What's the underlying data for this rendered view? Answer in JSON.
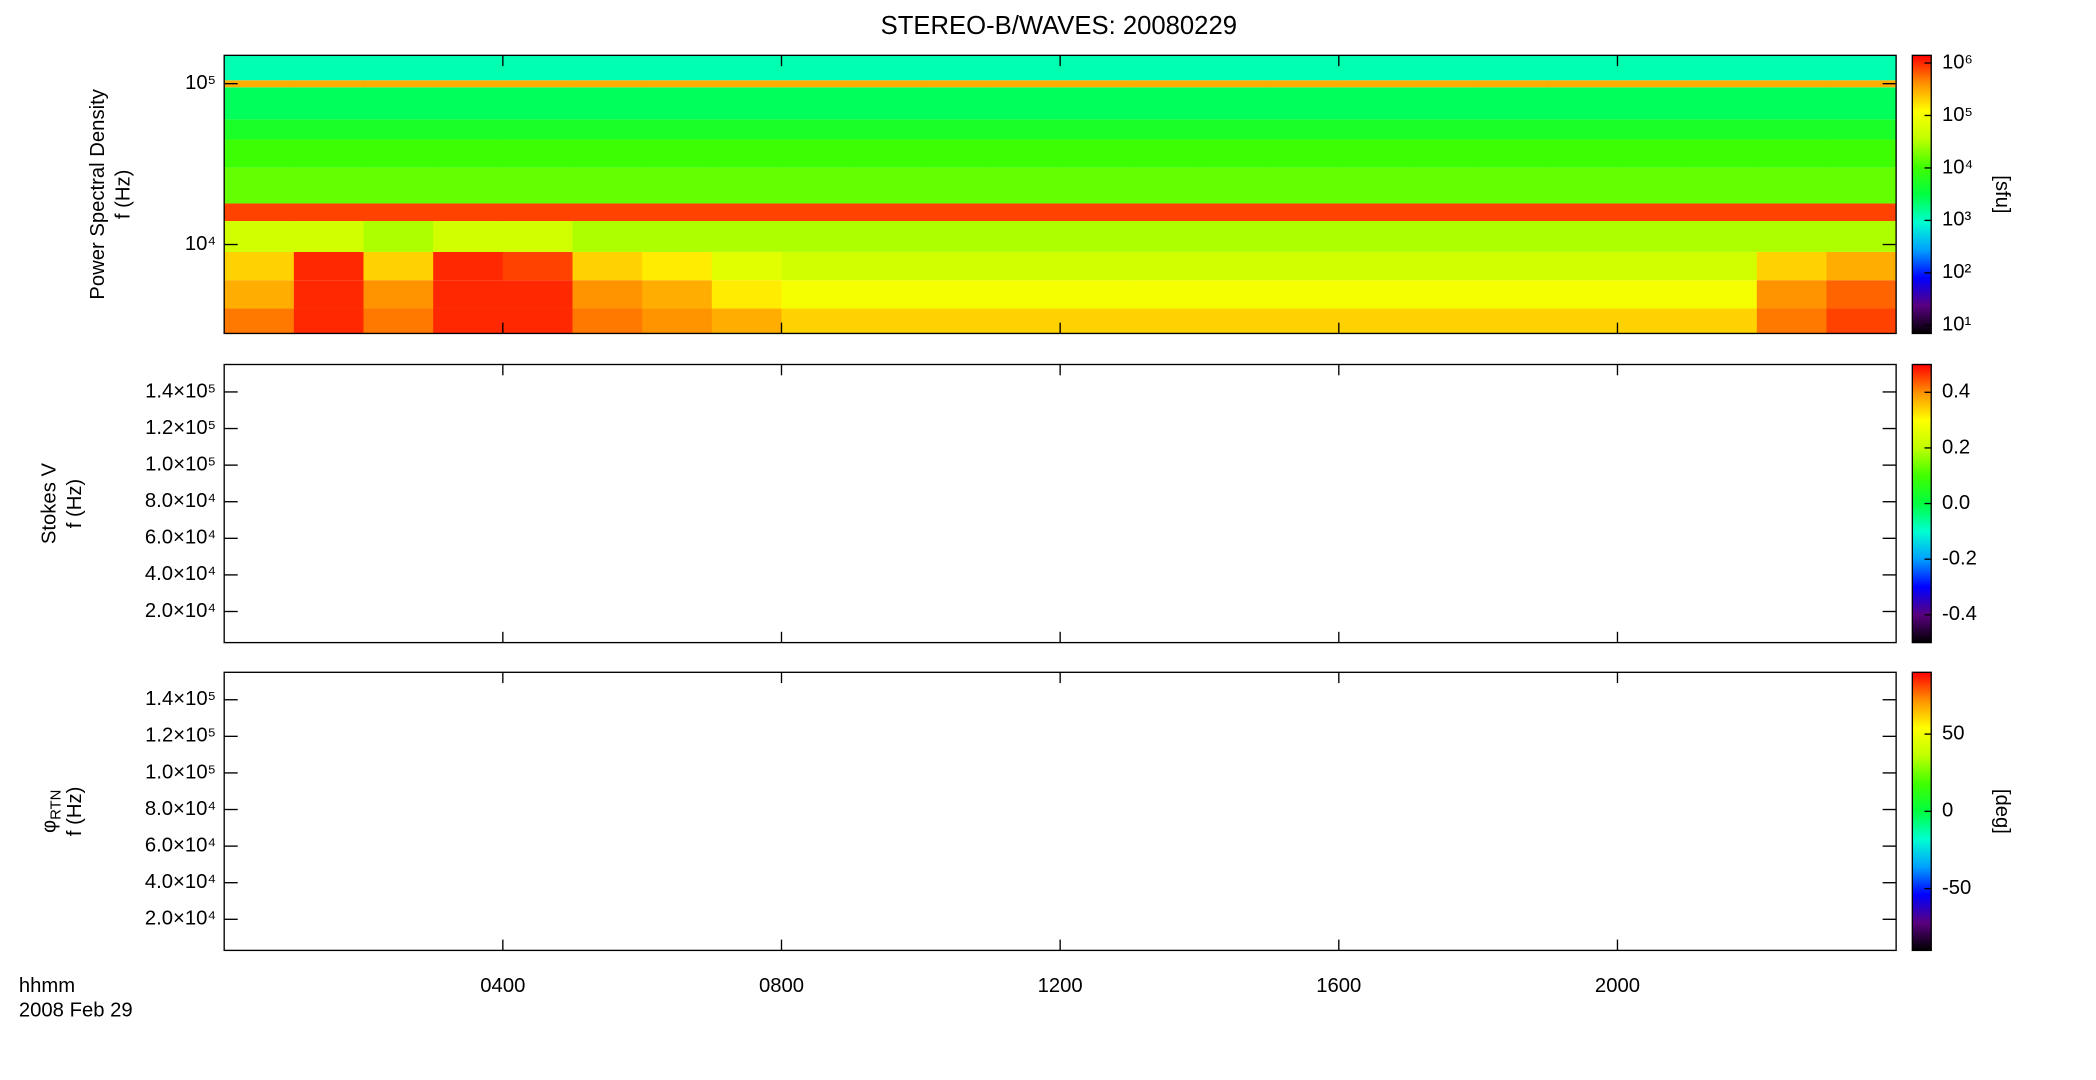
{
  "chart_data": [
    {
      "type": "heatmap",
      "title": "STEREO-B/WAVES: 20080229",
      "ylabel": [
        "Power Spectral Density",
        "f (Hz)"
      ],
      "xlim": [
        0,
        24
      ],
      "xticks": [
        4,
        8,
        12,
        16,
        20
      ],
      "ylog": true,
      "ylim": [
        2800,
        150000
      ],
      "yticks": [
        {
          "value": 10000,
          "label": "10⁴"
        },
        {
          "value": 100000,
          "label": "10⁵"
        }
      ],
      "xbins": [
        0,
        1,
        2,
        3,
        4,
        5,
        6,
        7,
        8,
        9,
        10,
        11,
        12,
        13,
        14,
        15,
        16,
        17,
        18,
        19,
        20,
        21,
        22,
        23,
        24
      ],
      "ybins": [
        2800,
        4000,
        6000,
        9000,
        14000,
        18000,
        30000,
        45000,
        60000,
        95000,
        105000,
        150000
      ],
      "z": [
        [
          500000,
          1000000,
          500000,
          1000000,
          1000000,
          500000,
          400000,
          300000,
          200000,
          200000,
          200000,
          200000,
          200000,
          200000,
          200000,
          200000,
          200000,
          200000,
          200000,
          200000,
          200000,
          200000,
          500000,
          800000
        ],
        [
          300000,
          1000000,
          400000,
          1000000,
          1000000,
          400000,
          300000,
          150000,
          100000,
          100000,
          100000,
          100000,
          100000,
          100000,
          100000,
          100000,
          100000,
          100000,
          100000,
          100000,
          100000,
          100000,
          400000,
          600000
        ],
        [
          200000,
          1000000,
          200000,
          1000000,
          800000,
          200000,
          150000,
          70000,
          50000,
          50000,
          50000,
          50000,
          50000,
          50000,
          50000,
          50000,
          50000,
          50000,
          50000,
          50000,
          50000,
          50000,
          200000,
          300000
        ],
        [
          50000,
          50000,
          30000,
          50000,
          50000,
          30000,
          30000,
          30000,
          30000,
          30000,
          30000,
          30000,
          30000,
          30000,
          30000,
          30000,
          30000,
          30000,
          30000,
          30000,
          30000,
          30000,
          30000,
          30000
        ],
        [
          800000,
          800000,
          800000,
          800000,
          800000,
          800000,
          800000,
          800000,
          800000,
          800000,
          800000,
          800000,
          800000,
          800000,
          800000,
          800000,
          800000,
          800000,
          800000,
          800000,
          800000,
          800000,
          800000,
          800000
        ],
        [
          15000,
          15000,
          15000,
          15000,
          15000,
          15000,
          15000,
          15000,
          15000,
          15000,
          15000,
          15000,
          15000,
          15000,
          15000,
          15000,
          15000,
          15000,
          15000,
          15000,
          15000,
          15000,
          15000,
          15000
        ],
        [
          10000,
          10000,
          10000,
          10000,
          10000,
          10000,
          10000,
          10000,
          10000,
          10000,
          10000,
          10000,
          10000,
          10000,
          10000,
          10000,
          10000,
          10000,
          10000,
          10000,
          10000,
          10000,
          10000,
          10000
        ],
        [
          5000,
          5000,
          5000,
          5000,
          5000,
          5000,
          5000,
          5000,
          5000,
          5000,
          5000,
          5000,
          5000,
          5000,
          5000,
          5000,
          5000,
          5000,
          5000,
          5000,
          5000,
          5000,
          5000,
          5000
        ],
        [
          2500,
          2500,
          2500,
          2500,
          2500,
          2500,
          2500,
          2500,
          2500,
          2500,
          2500,
          2500,
          2500,
          2500,
          2500,
          2500,
          2500,
          2500,
          2500,
          2500,
          2500,
          2500,
          2500,
          2500
        ],
        [
          300000,
          300000,
          300000,
          300000,
          300000,
          300000,
          300000,
          300000,
          300000,
          300000,
          300000,
          300000,
          300000,
          300000,
          300000,
          300000,
          300000,
          300000,
          300000,
          300000,
          300000,
          300000,
          300000,
          300000
        ],
        [
          1200,
          1200,
          1200,
          1200,
          1200,
          1200,
          1200,
          1200,
          1200,
          1200,
          1200,
          1200,
          1200,
          1200,
          1200,
          1200,
          1200,
          1200,
          1200,
          1200,
          1200,
          1200,
          1200,
          1200
        ]
      ],
      "zlog": true,
      "zlim": [
        7,
        1400000
      ],
      "zticks": [
        {
          "value": 10,
          "label": "10¹"
        },
        {
          "value": 100,
          "label": "10²"
        },
        {
          "value": 1000,
          "label": "10³"
        },
        {
          "value": 10000,
          "label": "10⁴"
        },
        {
          "value": 100000,
          "label": "10⁵"
        },
        {
          "value": 1000000,
          "label": "10⁶"
        }
      ],
      "zlabel": "[sfu]",
      "colormap": [
        "#000000",
        "#5a0080",
        "#0000ff",
        "#00a0ff",
        "#00ffd0",
        "#00ff40",
        "#40ff00",
        "#c0ff00",
        "#ffff00",
        "#ff9000",
        "#ff0000"
      ]
    },
    {
      "type": "heatmap",
      "ylabel": [
        "Stokes V",
        "f (Hz)"
      ],
      "xlim": [
        0,
        24
      ],
      "xticks": [
        4,
        8,
        12,
        16,
        20
      ],
      "ylim": [
        3000,
        155000
      ],
      "yticks": [
        {
          "value": 20000,
          "label": "2.0×10⁴"
        },
        {
          "value": 40000,
          "label": "4.0×10⁴"
        },
        {
          "value": 60000,
          "label": "6.0×10⁴"
        },
        {
          "value": 80000,
          "label": "8.0×10⁴"
        },
        {
          "value": 100000,
          "label": "1.0×10⁵"
        },
        {
          "value": 120000,
          "label": "1.2×10⁵"
        },
        {
          "value": 140000,
          "label": "1.4×10⁵"
        }
      ],
      "zlim": [
        -0.5,
        0.5
      ],
      "zticks": [
        -0.4,
        -0.2,
        {
          "value": 0,
          "label": "0.0"
        },
        0.2,
        0.4
      ],
      "colormap": [
        "#000000",
        "#5a0080",
        "#0000ff",
        "#00a0ff",
        "#00ffd0",
        "#00ff40",
        "#40ff00",
        "#c0ff00",
        "#ffff00",
        "#ff9000",
        "#ff0000"
      ]
    },
    {
      "type": "heatmap",
      "ylabel": [
        "φ",
        "f (Hz)"
      ],
      "ylabel_subscript": "RTN",
      "xlabel": [
        "hhmm",
        "2008 Feb 29"
      ],
      "xlim": [
        0,
        24
      ],
      "xticks": [
        {
          "value": 4,
          "label": "0400"
        },
        {
          "value": 8,
          "label": "0800"
        },
        {
          "value": 12,
          "label": "1200"
        },
        {
          "value": 16,
          "label": "1600"
        },
        {
          "value": 20,
          "label": "2000"
        }
      ],
      "ylim": [
        3000,
        155000
      ],
      "yticks": [
        {
          "value": 20000,
          "label": "2.0×10⁴"
        },
        {
          "value": 40000,
          "label": "4.0×10⁴"
        },
        {
          "value": 60000,
          "label": "6.0×10⁴"
        },
        {
          "value": 80000,
          "label": "8.0×10⁴"
        },
        {
          "value": 100000,
          "label": "1.0×10⁵"
        },
        {
          "value": 120000,
          "label": "1.2×10⁵"
        },
        {
          "value": 140000,
          "label": "1.4×10⁵"
        }
      ],
      "zlim": [
        -90,
        90
      ],
      "zticks": [
        -50,
        0,
        50
      ],
      "zlabel": "[deg]",
      "colormap": [
        "#000000",
        "#5a0080",
        "#0000ff",
        "#00a0ff",
        "#00ffd0",
        "#00ff40",
        "#40ff00",
        "#c0ff00",
        "#ffff00",
        "#ff9000",
        "#ff0000"
      ]
    }
  ]
}
